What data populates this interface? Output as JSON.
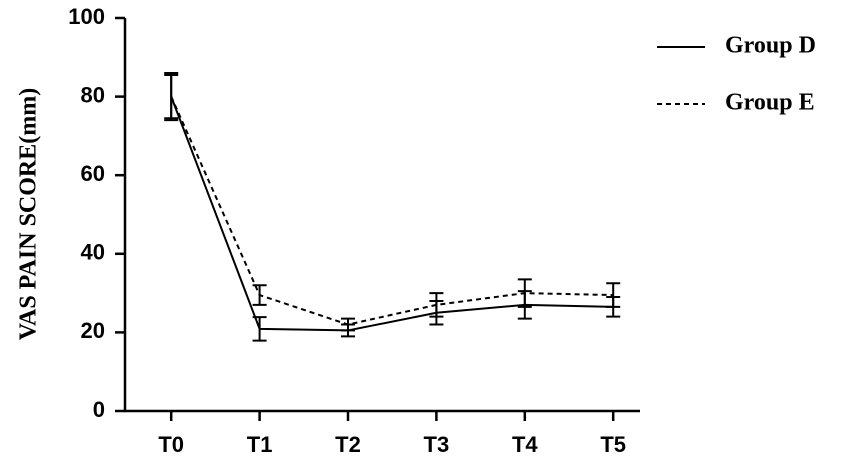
{
  "chart_data": {
    "type": "line",
    "y_label": "VAS PAIN SCORE(mm)",
    "categories": [
      "T0",
      "T1",
      "T2",
      "T3",
      "T4",
      "T5"
    ],
    "series": [
      {
        "name": "Group D",
        "color": "#000000",
        "dash": "solid",
        "values": [
          80,
          20.9,
          20.5,
          25,
          27,
          26.5
        ],
        "errors": [
          5.5,
          3,
          1.5,
          3,
          3.5,
          2.5
        ]
      },
      {
        "name": "Group E",
        "color": "#000000",
        "dash": "dashed",
        "values": [
          80,
          29.5,
          22,
          27,
          30,
          29.5
        ],
        "errors": [
          6,
          2.5,
          1.5,
          3,
          3.5,
          3
        ]
      }
    ],
    "ylim": [
      0,
      100
    ],
    "yticks": [
      0,
      20,
      40,
      60,
      80,
      100
    ],
    "grid": false,
    "legend": "top-right"
  }
}
